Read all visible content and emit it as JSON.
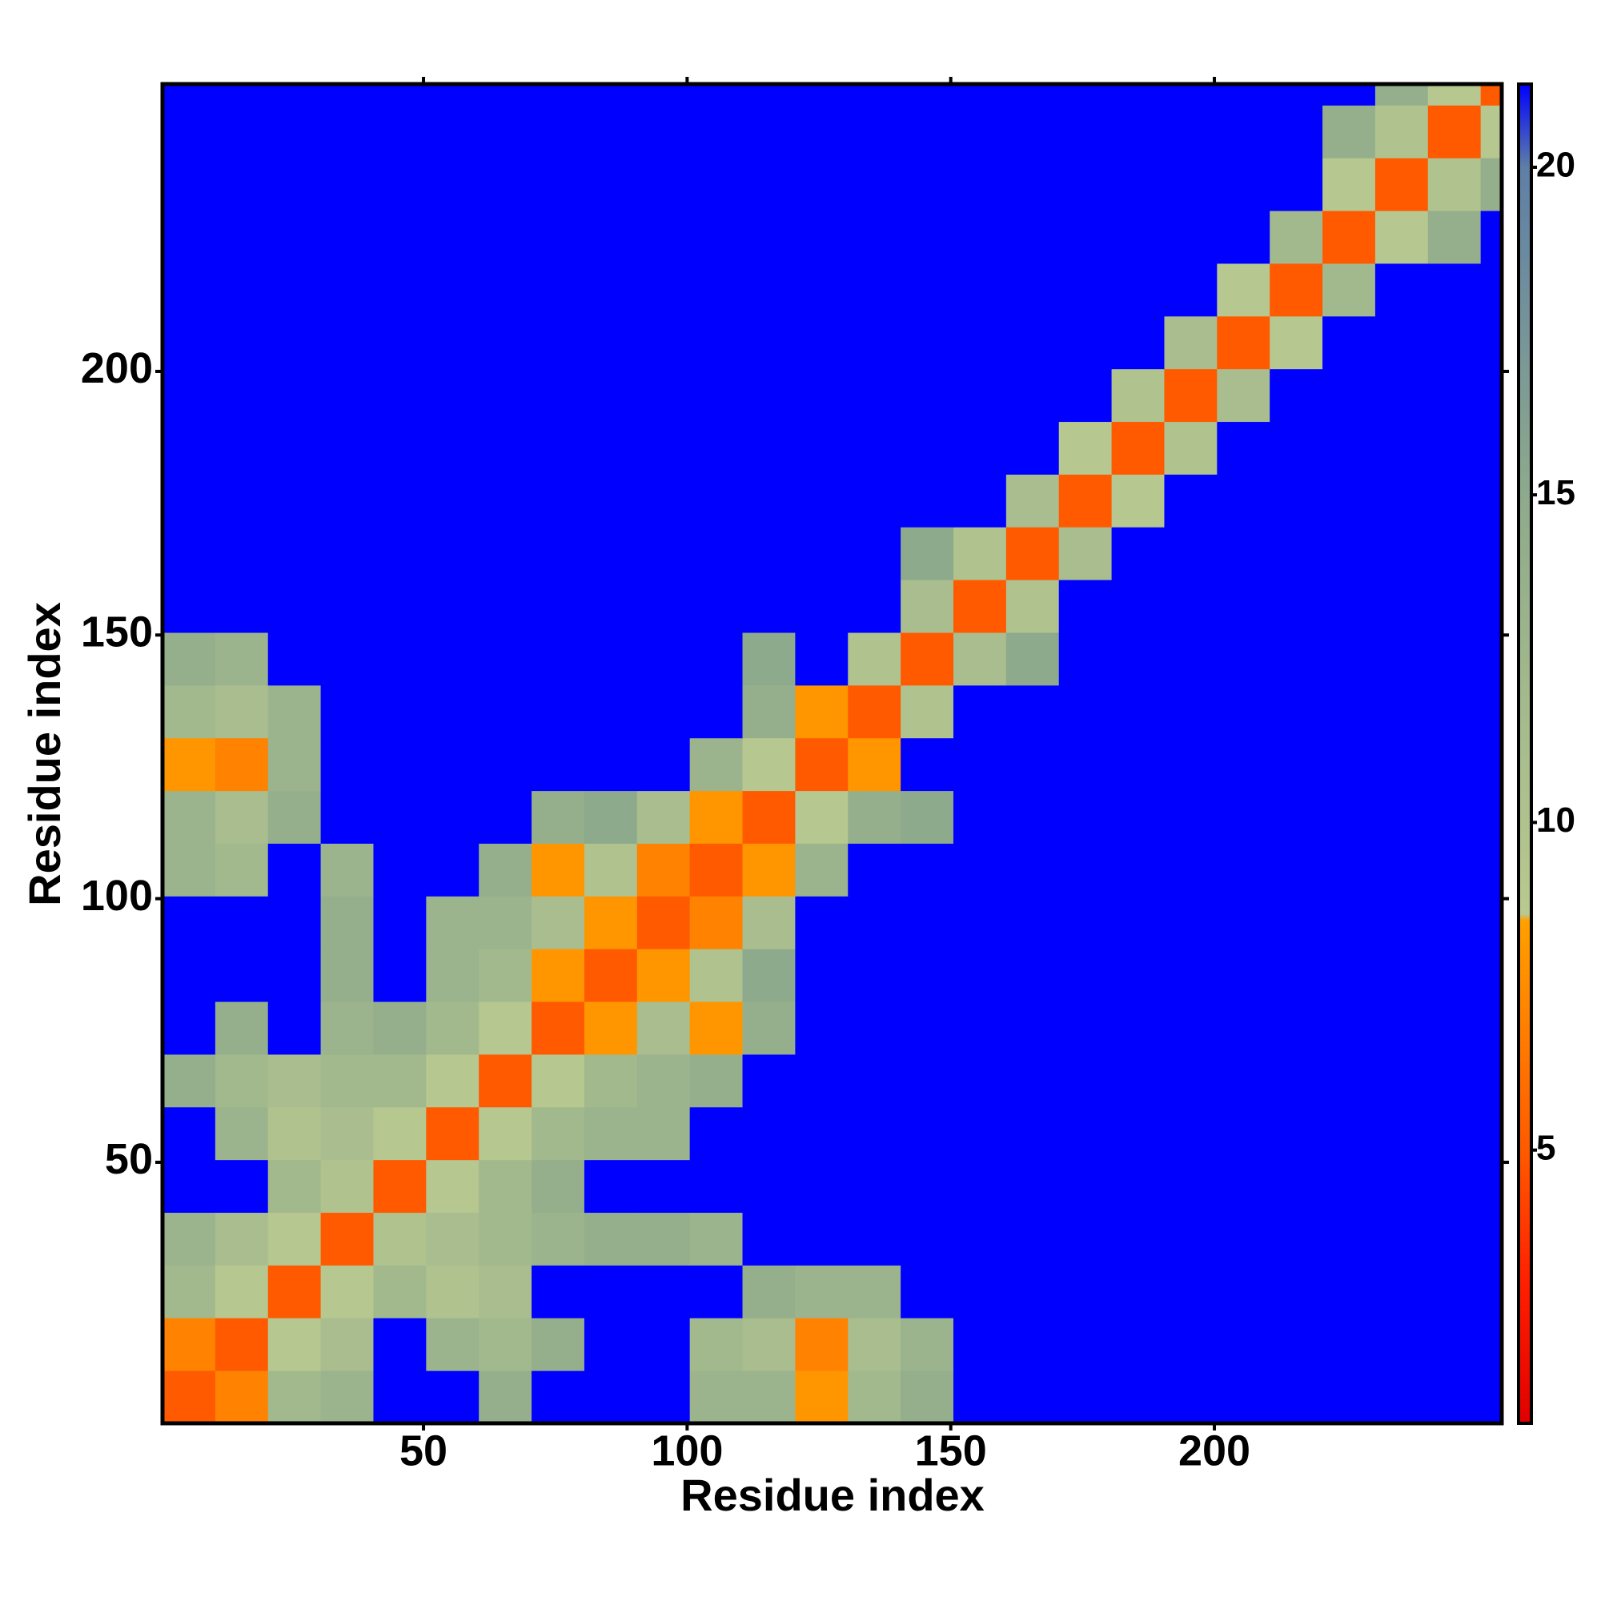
{
  "chart_data": {
    "type": "heatmap",
    "xlabel": "Residue index",
    "ylabel": "Residue index",
    "x_bins": [
      0.5,
      10.5,
      20.5,
      30.5,
      40.5,
      50.5,
      60.5,
      70.5,
      80.5,
      90.5,
      100.5,
      110.5,
      120.5,
      130.5,
      140.5,
      150.5,
      160.5,
      170.5,
      180.5,
      190.5,
      200.5,
      210.5,
      220.5,
      230.5,
      240.5,
      250.5,
      254.5
    ],
    "y_bins": [
      0.5,
      10.5,
      20.5,
      30.5,
      40.5,
      50.5,
      60.5,
      70.5,
      80.5,
      90.5,
      100.5,
      110.5,
      120.5,
      130.5,
      140.5,
      150.5,
      160.5,
      170.5,
      180.5,
      190.5,
      200.5,
      210.5,
      220.5,
      230.5,
      240.5,
      250.5,
      254.5
    ],
    "xlim": [
      0.5,
      254.5
    ],
    "ylim": [
      0.5,
      254.5
    ],
    "xticks": [
      50,
      100,
      150,
      200
    ],
    "yticks": [
      50,
      100,
      150,
      200
    ],
    "zlim": [
      0.83,
      21.27
    ],
    "zticks": [
      5,
      10,
      15,
      20
    ],
    "colorscale": [
      [
        0.83,
        "#e00000"
      ],
      [
        3,
        "#ff2000"
      ],
      [
        5,
        "#ff5a00"
      ],
      [
        8.5,
        "#ffa000"
      ],
      [
        8.6,
        "#b9c98f"
      ],
      [
        15,
        "#8eaa8c"
      ],
      [
        20,
        "#5f7ea6"
      ],
      [
        21.27,
        "#0000ff"
      ]
    ],
    "z": [
      [
        5,
        7,
        12,
        13,
        22,
        22,
        14,
        22,
        22,
        22,
        13,
        13,
        8,
        12,
        14,
        22,
        22,
        22,
        22,
        22,
        22,
        22,
        22,
        22,
        22,
        22
      ],
      [
        7,
        5,
        9,
        11,
        22,
        13,
        12,
        14,
        22,
        22,
        12,
        11,
        7,
        11,
        13,
        22,
        22,
        22,
        22,
        22,
        22,
        22,
        22,
        22,
        22,
        22
      ],
      [
        12,
        9,
        5,
        9,
        12,
        10,
        11,
        22,
        22,
        22,
        22,
        14,
        13,
        13,
        22,
        22,
        22,
        22,
        22,
        22,
        22,
        22,
        22,
        22,
        22,
        22
      ],
      [
        13,
        11,
        9,
        5,
        10,
        11,
        12,
        13,
        14,
        14,
        13,
        22,
        22,
        22,
        22,
        22,
        22,
        22,
        22,
        22,
        22,
        22,
        22,
        22,
        22,
        22
      ],
      [
        22,
        22,
        12,
        10,
        5,
        9,
        12,
        14,
        22,
        22,
        22,
        22,
        22,
        22,
        22,
        22,
        22,
        22,
        22,
        22,
        22,
        22,
        22,
        22,
        22,
        22
      ],
      [
        22,
        13,
        10,
        11,
        9,
        5,
        9,
        12,
        13,
        13,
        22,
        22,
        22,
        22,
        22,
        22,
        22,
        22,
        22,
        22,
        22,
        22,
        22,
        22,
        22,
        22
      ],
      [
        14,
        12,
        11,
        12,
        12,
        9,
        5,
        9,
        12,
        13,
        14,
        22,
        22,
        22,
        22,
        22,
        22,
        22,
        22,
        22,
        22,
        22,
        22,
        22,
        22,
        22
      ],
      [
        22,
        14,
        22,
        13,
        14,
        12,
        9,
        5,
        8,
        11,
        8,
        14,
        22,
        22,
        22,
        22,
        22,
        22,
        22,
        22,
        22,
        22,
        22,
        22,
        22,
        22
      ],
      [
        22,
        22,
        22,
        14,
        22,
        13,
        12,
        8,
        5,
        8,
        10,
        15,
        22,
        22,
        22,
        22,
        22,
        22,
        22,
        22,
        22,
        22,
        22,
        22,
        22,
        22
      ],
      [
        22,
        22,
        22,
        14,
        22,
        13,
        13,
        11,
        8,
        5,
        7,
        11,
        22,
        22,
        22,
        22,
        22,
        22,
        22,
        22,
        22,
        22,
        22,
        22,
        22,
        22
      ],
      [
        13,
        12,
        22,
        13,
        22,
        22,
        14,
        8,
        10,
        7,
        5,
        8,
        13,
        22,
        22,
        22,
        22,
        22,
        22,
        22,
        22,
        22,
        22,
        22,
        22,
        22
      ],
      [
        13,
        11,
        14,
        22,
        22,
        22,
        22,
        14,
        15,
        11,
        8,
        5,
        9,
        14,
        15,
        22,
        22,
        22,
        22,
        22,
        22,
        22,
        22,
        22,
        22,
        22
      ],
      [
        8,
        7,
        13,
        22,
        22,
        22,
        22,
        22,
        22,
        22,
        13,
        9,
        5,
        8,
        22,
        22,
        22,
        22,
        22,
        22,
        22,
        22,
        22,
        22,
        22,
        22
      ],
      [
        12,
        11,
        13,
        22,
        22,
        22,
        22,
        22,
        22,
        22,
        22,
        14,
        8,
        5,
        10,
        22,
        22,
        22,
        22,
        22,
        22,
        22,
        22,
        22,
        22,
        22
      ],
      [
        14,
        13,
        22,
        22,
        22,
        22,
        22,
        22,
        22,
        22,
        22,
        15,
        22,
        10,
        5,
        11,
        15,
        22,
        22,
        22,
        22,
        22,
        22,
        22,
        22,
        22
      ],
      [
        22,
        22,
        22,
        22,
        22,
        22,
        22,
        22,
        22,
        22,
        22,
        22,
        22,
        22,
        11,
        5,
        10,
        22,
        22,
        22,
        22,
        22,
        22,
        22,
        22,
        22
      ],
      [
        22,
        22,
        22,
        22,
        22,
        22,
        22,
        22,
        22,
        22,
        22,
        22,
        22,
        22,
        15,
        10,
        5,
        11,
        22,
        22,
        22,
        22,
        22,
        22,
        22,
        22
      ],
      [
        22,
        22,
        22,
        22,
        22,
        22,
        22,
        22,
        22,
        22,
        22,
        22,
        22,
        22,
        22,
        22,
        11,
        5,
        9,
        22,
        22,
        22,
        22,
        22,
        22,
        22
      ],
      [
        22,
        22,
        22,
        22,
        22,
        22,
        22,
        22,
        22,
        22,
        22,
        22,
        22,
        22,
        22,
        22,
        22,
        9,
        5,
        10,
        22,
        22,
        22,
        22,
        22,
        22
      ],
      [
        22,
        22,
        22,
        22,
        22,
        22,
        22,
        22,
        22,
        22,
        22,
        22,
        22,
        22,
        22,
        22,
        22,
        22,
        10,
        5,
        11,
        22,
        22,
        22,
        22,
        22
      ],
      [
        22,
        22,
        22,
        22,
        22,
        22,
        22,
        22,
        22,
        22,
        22,
        22,
        22,
        22,
        22,
        22,
        22,
        22,
        22,
        11,
        5,
        9,
        22,
        22,
        22,
        22
      ],
      [
        22,
        22,
        22,
        22,
        22,
        22,
        22,
        22,
        22,
        22,
        22,
        22,
        22,
        22,
        22,
        22,
        22,
        22,
        22,
        22,
        9,
        5,
        12,
        22,
        22,
        22
      ],
      [
        22,
        22,
        22,
        22,
        22,
        22,
        22,
        22,
        22,
        22,
        22,
        22,
        22,
        22,
        22,
        22,
        22,
        22,
        22,
        22,
        22,
        12,
        5,
        9,
        14,
        22
      ],
      [
        22,
        22,
        22,
        22,
        22,
        22,
        22,
        22,
        22,
        22,
        22,
        22,
        22,
        22,
        22,
        22,
        22,
        22,
        22,
        22,
        22,
        22,
        9,
        5,
        10,
        14
      ],
      [
        22,
        22,
        22,
        22,
        22,
        22,
        22,
        22,
        22,
        22,
        22,
        22,
        22,
        22,
        22,
        22,
        22,
        22,
        22,
        22,
        22,
        22,
        14,
        10,
        5,
        9
      ],
      [
        22,
        22,
        22,
        22,
        22,
        22,
        22,
        22,
        22,
        22,
        22,
        22,
        22,
        22,
        22,
        22,
        22,
        22,
        22,
        22,
        22,
        22,
        22,
        14,
        9,
        5
      ]
    ]
  }
}
